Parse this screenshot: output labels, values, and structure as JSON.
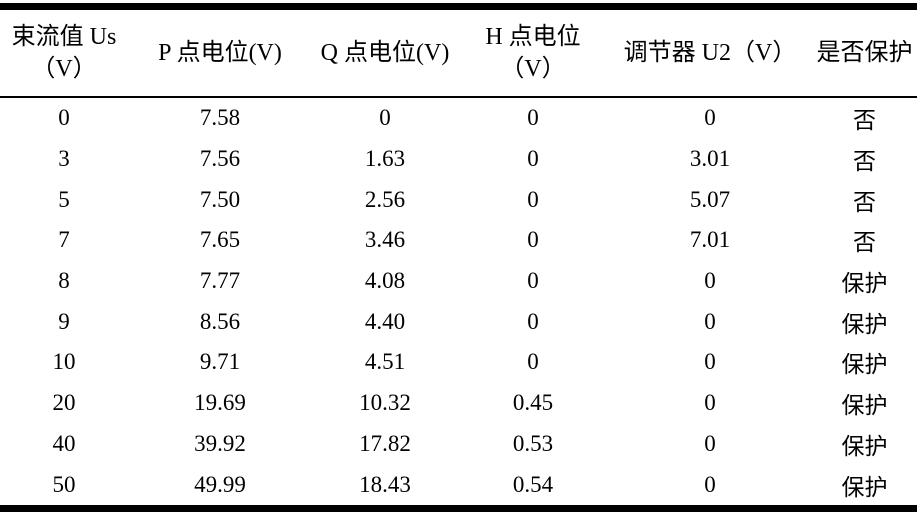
{
  "colors": {
    "background": "#ffffff",
    "text": "#000000",
    "rule": "#000000"
  },
  "table": {
    "columns": [
      {
        "id": "us",
        "lines": [
          "束流值 Us",
          "（V）"
        ]
      },
      {
        "id": "p",
        "lines": [
          "P 点电位(V)"
        ]
      },
      {
        "id": "q",
        "lines": [
          "Q 点电位(V)"
        ]
      },
      {
        "id": "h",
        "lines": [
          "H 点电位",
          "（V）"
        ]
      },
      {
        "id": "u2",
        "lines": [
          "调节器 U2（V）"
        ]
      },
      {
        "id": "protect",
        "lines": [
          "是否保护"
        ]
      }
    ],
    "rows": [
      [
        "0",
        "7.58",
        "0",
        "0",
        "0",
        "否"
      ],
      [
        "3",
        "7.56",
        "1.63",
        "0",
        "3.01",
        "否"
      ],
      [
        "5",
        "7.50",
        "2.56",
        "0",
        "5.07",
        "否"
      ],
      [
        "7",
        "7.65",
        "3.46",
        "0",
        "7.01",
        "否"
      ],
      [
        "8",
        "7.77",
        "4.08",
        "0",
        "0",
        "保护"
      ],
      [
        "9",
        "8.56",
        "4.40",
        "0",
        "0",
        "保护"
      ],
      [
        "10",
        "9.71",
        "4.51",
        "0",
        "0",
        "保护"
      ],
      [
        "20",
        "19.69",
        "10.32",
        "0.45",
        "0",
        "保护"
      ],
      [
        "40",
        "39.92",
        "17.82",
        "0.53",
        "0",
        "保护"
      ],
      [
        "50",
        "49.99",
        "18.43",
        "0.54",
        "0",
        "保护"
      ]
    ]
  }
}
